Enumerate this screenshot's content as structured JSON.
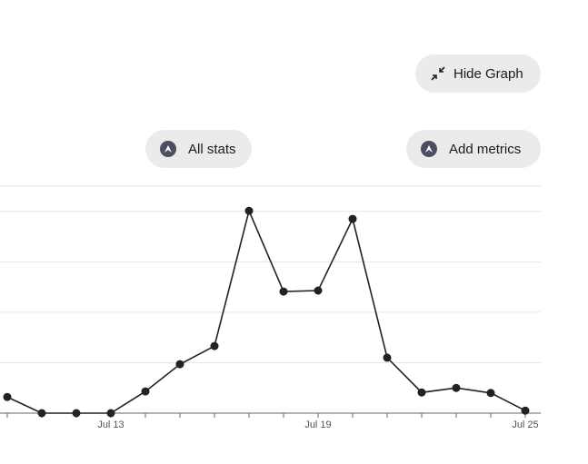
{
  "buttons": {
    "hide_graph": "Hide Graph",
    "all_stats": "All stats",
    "add_metrics": "Add metrics"
  },
  "chart_data": {
    "type": "line",
    "categories": [
      null,
      null,
      null,
      "Jul 13",
      null,
      null,
      null,
      null,
      null,
      "Jul 19",
      null,
      null,
      null,
      null,
      null,
      "Jul 25"
    ],
    "series": [
      {
        "color": "#222222",
        "values": [
          0.32,
          0,
          0,
          0,
          0.43,
          0.97,
          1.33,
          4.01,
          2.41,
          2.43,
          3.85,
          1.1,
          0.41,
          0.5,
          0.4,
          0.05
        ]
      }
    ],
    "ylim": [
      0,
      4.5
    ],
    "yticks": [
      1,
      2,
      3,
      4
    ],
    "grid": true
  }
}
